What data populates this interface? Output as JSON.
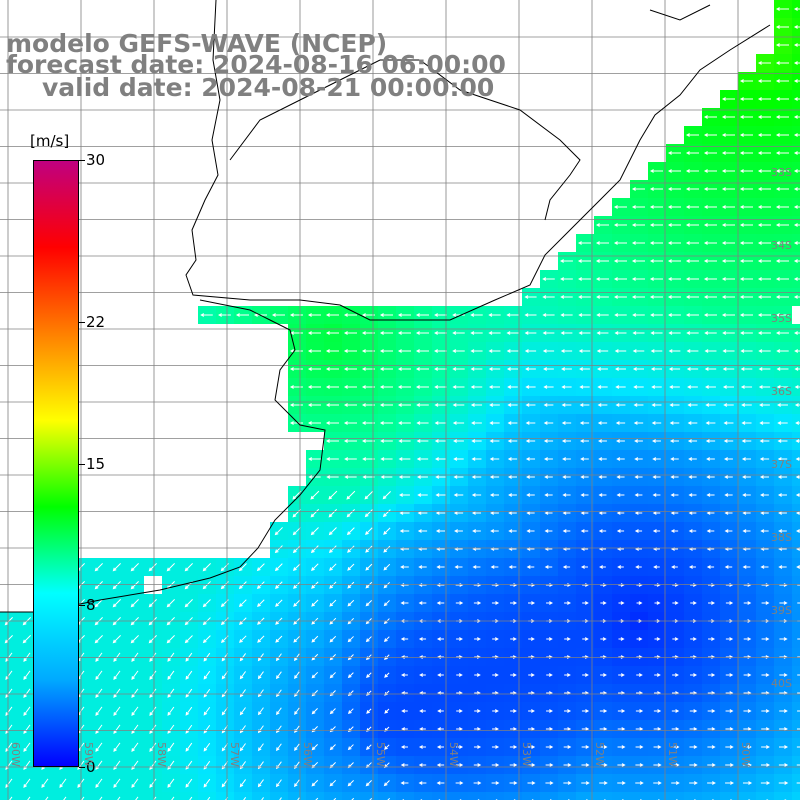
{
  "title": {
    "line1": "modelo GEFS-WAVE (NCEP)",
    "line2": "forecast date: 2024-08-16 06:00:00",
    "line3": "valid date: 2024-08-21 00:00:00"
  },
  "colorbar": {
    "unit": "[m/s]",
    "ticks": [
      {
        "label": "30",
        "value": 30
      },
      {
        "label": "22",
        "value": 22
      },
      {
        "label": "15",
        "value": 15
      },
      {
        "label": "8",
        "value": 8
      },
      {
        "label": "0",
        "value": 0
      }
    ],
    "range": [
      0,
      30
    ],
    "colors": [
      "#0000ff",
      "#00aaff",
      "#00ffff",
      "#00ff00",
      "#ffff00",
      "#ff8000",
      "#ff0000",
      "#c00080"
    ]
  },
  "map": {
    "lat_labels": [
      "33S",
      "34S",
      "35S",
      "36S",
      "37S",
      "38S",
      "39S",
      "40S"
    ],
    "lon_labels": [
      "60W",
      "59W",
      "58W",
      "57W",
      "56W",
      "55W",
      "54W",
      "53W",
      "52W",
      "51W",
      "50W"
    ],
    "land_color": "#ffffff",
    "grid_color": "#808080",
    "coast_color": "#000000",
    "arrow_color": "#ffffff"
  }
}
